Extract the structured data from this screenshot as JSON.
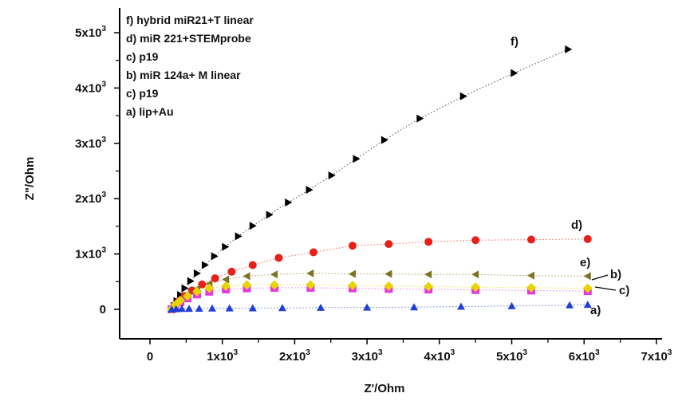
{
  "chart_data": {
    "type": "scatter",
    "title": "",
    "xlabel": "Z'/Ohm",
    "ylabel": "Z\"/Ohm",
    "xlim": [
      -400,
      7000
    ],
    "ylim": [
      -550,
      5300
    ],
    "x_ticks": [
      {
        "v": 0,
        "base": "0",
        "exp": ""
      },
      {
        "v": 1000,
        "base": "1x10",
        "exp": "3"
      },
      {
        "v": 2000,
        "base": "2x10",
        "exp": "3"
      },
      {
        "v": 3000,
        "base": "3x10",
        "exp": "3"
      },
      {
        "v": 4000,
        "base": "4x10",
        "exp": "3"
      },
      {
        "v": 5000,
        "base": "5x10",
        "exp": "3"
      },
      {
        "v": 6000,
        "base": "6x10",
        "exp": "3"
      },
      {
        "v": 7000,
        "base": "7x10",
        "exp": "3"
      }
    ],
    "y_ticks": [
      {
        "v": 0,
        "base": "0",
        "exp": ""
      },
      {
        "v": 1000,
        "base": "1x10",
        "exp": "3"
      },
      {
        "v": 2000,
        "base": "2x10",
        "exp": "3"
      },
      {
        "v": 3000,
        "base": "3x10",
        "exp": "3"
      },
      {
        "v": 4000,
        "base": "4x10",
        "exp": "3"
      },
      {
        "v": 5000,
        "base": "5x10",
        "exp": "3"
      }
    ],
    "legend": [
      "f) hybrid miR21+T linear",
      "d) miR 221+STEMprobe",
      "c) p19",
      "b) miR 124a+ M linear",
      "c) p19",
      "a) lip+Au"
    ],
    "series": [
      {
        "id": "f",
        "label": "f)",
        "color": "#000000",
        "marker": "triangle-right",
        "x": [
          300,
          330,
          370,
          420,
          480,
          560,
          650,
          760,
          890,
          1040,
          1220,
          1420,
          1650,
          1910,
          2200,
          2510,
          2850,
          3240,
          3730,
          4330,
          5030,
          5780
        ],
        "y": [
          0,
          60,
          150,
          260,
          380,
          510,
          650,
          800,
          960,
          1130,
          1320,
          1510,
          1710,
          1930,
          2160,
          2420,
          2720,
          3060,
          3450,
          3850,
          4270,
          4700
        ]
      },
      {
        "id": "d",
        "label": "d)",
        "color": "#e8201a",
        "marker": "circle",
        "x": [
          300,
          340,
          400,
          480,
          580,
          720,
          900,
          1130,
          1420,
          1780,
          2260,
          2800,
          3300,
          3850,
          4500,
          5270,
          6050
        ],
        "y": [
          0,
          70,
          150,
          240,
          340,
          450,
          560,
          680,
          800,
          930,
          1030,
          1150,
          1180,
          1220,
          1250,
          1260,
          1270
        ]
      },
      {
        "id": "e",
        "label": "e)",
        "color": "#7b7322",
        "marker": "triangle-left",
        "x": [
          300,
          350,
          420,
          520,
          650,
          820,
          1050,
          1340,
          1720,
          2220,
          2800,
          3300,
          3850,
          4500,
          5270,
          6050
        ],
        "y": [
          0,
          80,
          170,
          270,
          370,
          460,
          540,
          600,
          630,
          650,
          640,
          640,
          630,
          630,
          610,
          600
        ]
      },
      {
        "id": "b",
        "label": "b)",
        "color": "#e23ae0",
        "marker": "square",
        "x": [
          300,
          350,
          420,
          520,
          650,
          820,
          1050,
          1340,
          1720,
          2220,
          2800,
          3300,
          3850,
          4500,
          5270,
          6050
        ],
        "y": [
          0,
          60,
          130,
          200,
          270,
          320,
          360,
          380,
          390,
          390,
          380,
          370,
          360,
          350,
          340,
          330
        ]
      },
      {
        "id": "c",
        "label": "c)",
        "color": "#e8d400",
        "marker": "diamond",
        "x": [
          300,
          350,
          420,
          520,
          650,
          820,
          1050,
          1340,
          1720,
          2220,
          2800,
          3300,
          3850,
          4500,
          5270,
          6050
        ],
        "y": [
          0,
          80,
          160,
          240,
          320,
          380,
          420,
          440,
          440,
          440,
          430,
          420,
          410,
          400,
          390,
          380
        ]
      },
      {
        "id": "a",
        "label": "a)",
        "color": "#1f3fd8",
        "marker": "triangle-up",
        "x": [
          300,
          360,
          440,
          540,
          680,
          860,
          1100,
          1420,
          1830,
          2360,
          3000,
          3650,
          4300,
          5000,
          5800,
          6050
        ],
        "y": [
          0,
          5,
          10,
          12,
          15,
          18,
          20,
          22,
          25,
          30,
          35,
          40,
          50,
          60,
          75,
          85
        ]
      }
    ]
  }
}
